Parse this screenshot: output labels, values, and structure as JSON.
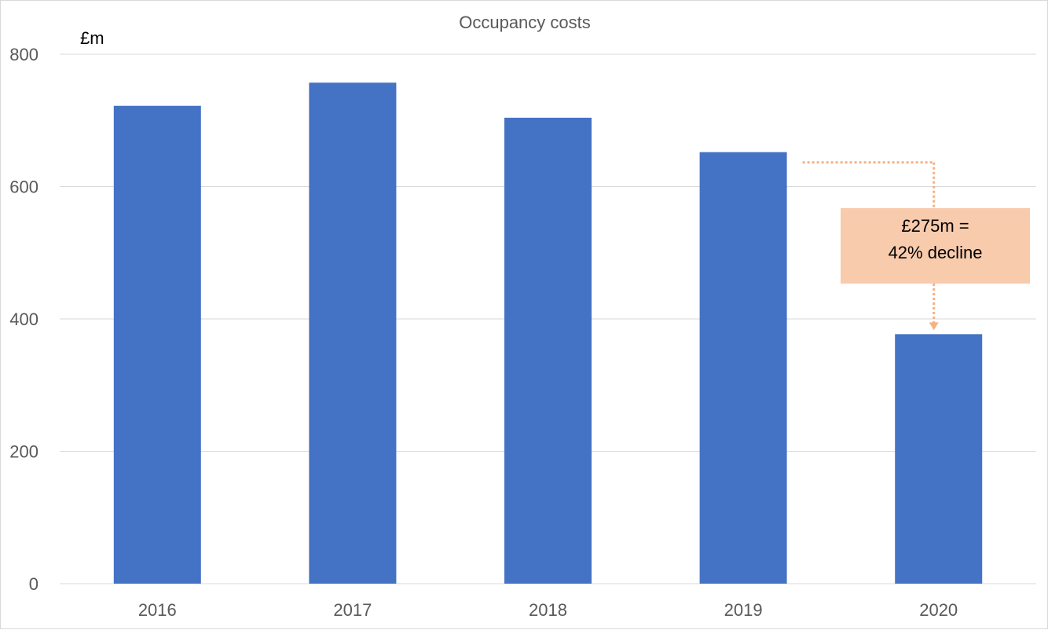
{
  "chart_data": {
    "type": "bar",
    "title": "Occupancy costs",
    "unit_label": "£m",
    "xlabel": "",
    "ylabel": "",
    "categories": [
      "2016",
      "2017",
      "2018",
      "2019",
      "2020"
    ],
    "values": [
      722,
      757,
      704,
      652,
      377
    ],
    "ylim": [
      0,
      800
    ],
    "yticks": [
      0,
      200,
      400,
      600,
      800
    ],
    "grid": true,
    "legend": "none",
    "bar_color": "#4472C4",
    "annotation": {
      "line1": "£275m =",
      "line2": "42% decline",
      "from_category": "2019",
      "to_category": "2020",
      "fill_color": "#F8CBAD",
      "arrow_color": "#F4B183"
    }
  }
}
